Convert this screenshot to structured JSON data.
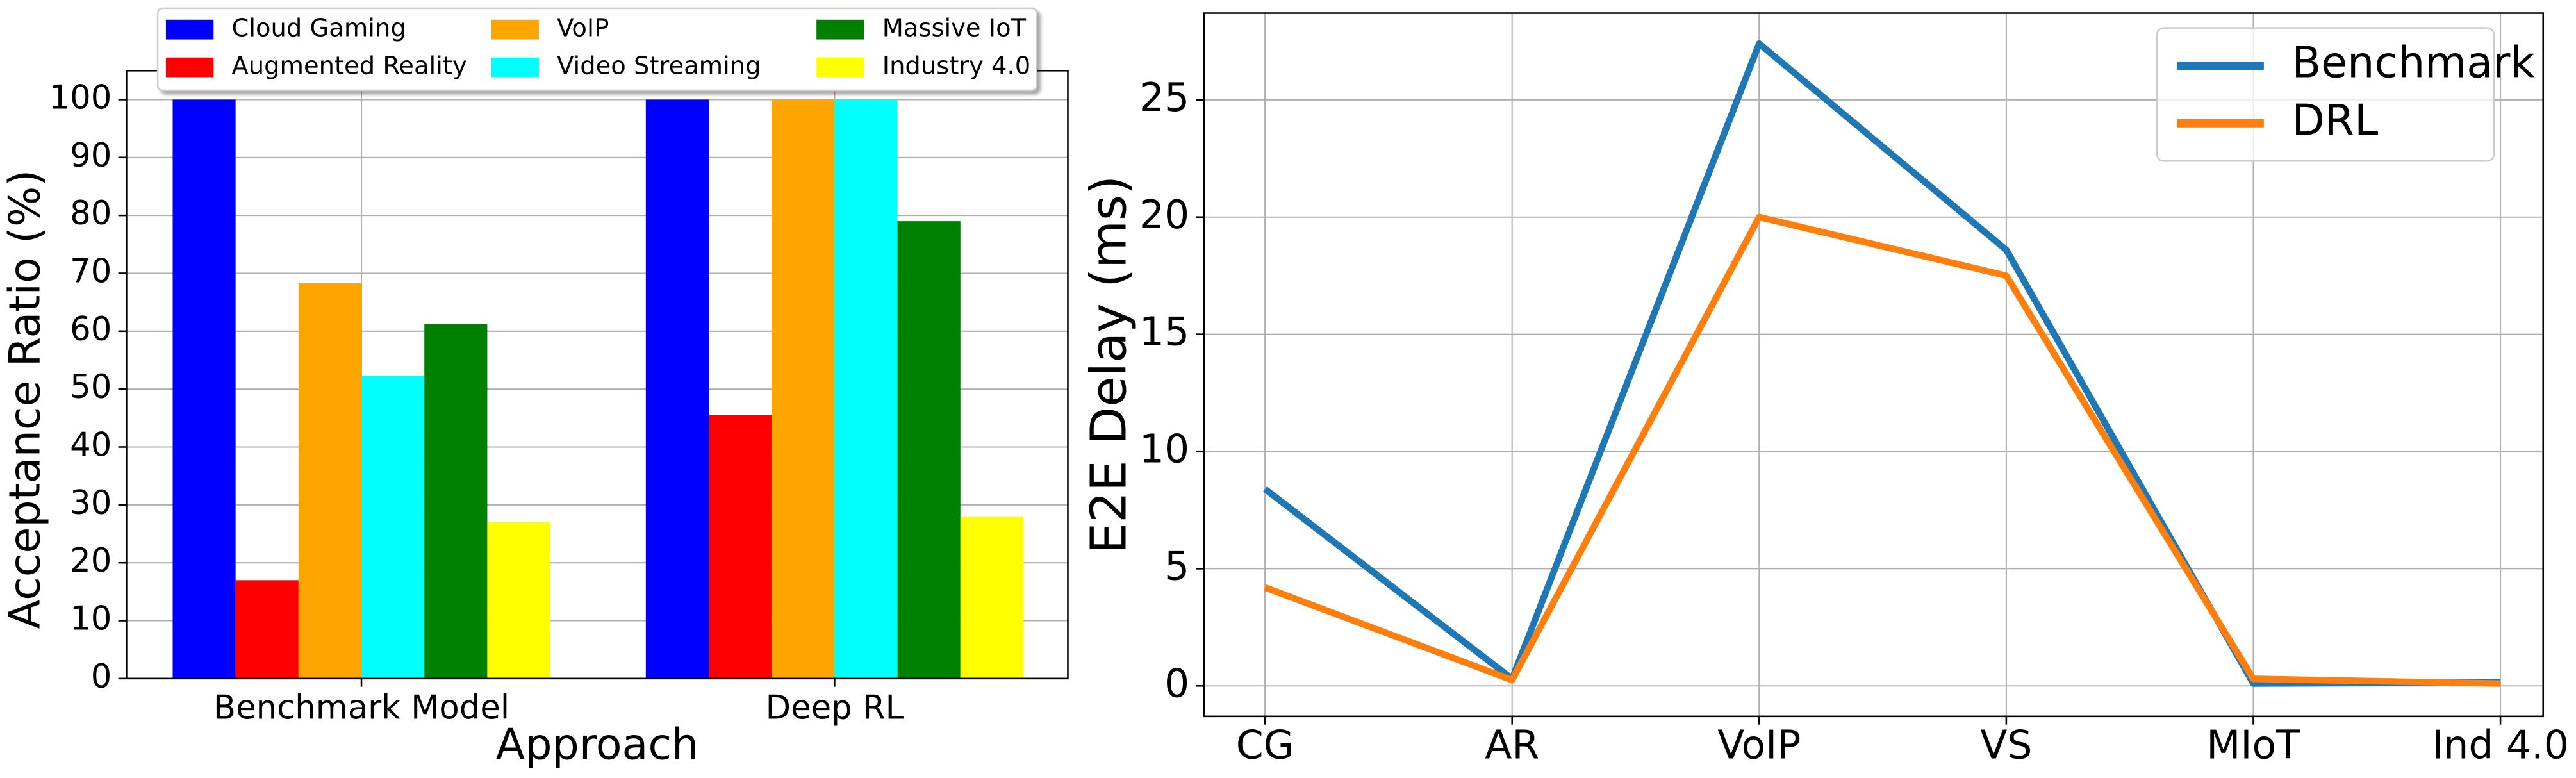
{
  "chart_data": [
    {
      "type": "bar",
      "xlabel": "Approach",
      "ylabel": "Acceptance Ratio (%)",
      "categories": [
        "Benchmark Model",
        "Deep RL"
      ],
      "series": [
        {
          "name": "Cloud Gaming",
          "color": "#0000ff",
          "values": [
            100,
            100
          ]
        },
        {
          "name": "Augmented Reality",
          "color": "#ff0000",
          "values": [
            17,
            45.5
          ]
        },
        {
          "name": "VoIP",
          "color": "#ffa500",
          "values": [
            68.3,
            100
          ]
        },
        {
          "name": "Video Streaming",
          "color": "#00ffff",
          "values": [
            52.3,
            100
          ]
        },
        {
          "name": "Massive IoT",
          "color": "#008000",
          "values": [
            61.2,
            79
          ]
        },
        {
          "name": "Industry 4.0",
          "color": "#ffff00",
          "values": [
            27,
            28
          ]
        }
      ],
      "ylim": [
        0,
        105
      ],
      "yticks": [
        0,
        10,
        20,
        30,
        40,
        50,
        60,
        70,
        80,
        90,
        100
      ],
      "grid": true,
      "legend": "upper center"
    },
    {
      "type": "line",
      "ylabel": "E2E Delay (ms)",
      "categories": [
        "CG",
        "AR",
        "VoIP",
        "VS",
        "MIoT",
        "Ind 4.0"
      ],
      "series": [
        {
          "name": "Benchmark",
          "color": "#1f77b4",
          "values": [
            8.4,
            0.3,
            27.4,
            18.6,
            0.1,
            0.15
          ]
        },
        {
          "name": "DRL",
          "color": "#ff7f0e",
          "values": [
            4.2,
            0.25,
            20.0,
            17.5,
            0.3,
            0.1
          ]
        }
      ],
      "ylim": [
        -1.3,
        28.7
      ],
      "yticks": [
        0,
        5,
        10,
        15,
        20,
        25
      ],
      "grid": true,
      "legend": "upper right"
    }
  ]
}
